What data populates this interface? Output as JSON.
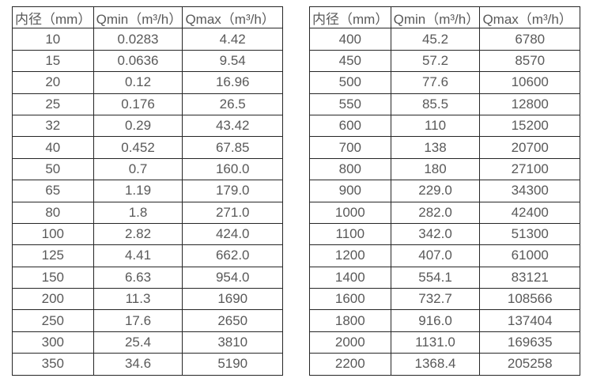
{
  "colors": {
    "background": "#ffffff",
    "border": "#262626",
    "text": "#595959"
  },
  "tables": [
    {
      "name": "flow-spec-table-small-diameters",
      "headers": [
        "内径（mm）",
        "Qmin（m³/h）",
        "Qmax（m³/h）"
      ],
      "rows": [
        [
          "10",
          "0.0283",
          "4.42"
        ],
        [
          "15",
          "0.0636",
          "9.54"
        ],
        [
          "20",
          "0.12",
          "16.96"
        ],
        [
          "25",
          "0.176",
          "26.5"
        ],
        [
          "32",
          "0.29",
          "43.42"
        ],
        [
          "40",
          "0.452",
          "67.85"
        ],
        [
          "50",
          "0.7",
          "160.0"
        ],
        [
          "65",
          "1.19",
          "179.0"
        ],
        [
          "80",
          "1.8",
          "271.0"
        ],
        [
          "100",
          "2.82",
          "424.0"
        ],
        [
          "125",
          "4.41",
          "662.0"
        ],
        [
          "150",
          "6.63",
          "954.0"
        ],
        [
          "200",
          "11.3",
          "1690"
        ],
        [
          "250",
          "17.6",
          "2650"
        ],
        [
          "300",
          "25.4",
          "3810"
        ],
        [
          "350",
          "34.6",
          "5190"
        ]
      ]
    },
    {
      "name": "flow-spec-table-large-diameters",
      "headers": [
        "内径（mm）",
        "Qmin（m³/h）",
        "Qmax（m³/h）"
      ],
      "rows": [
        [
          "400",
          "45.2",
          "6780"
        ],
        [
          "450",
          "57.2",
          "8570"
        ],
        [
          "500",
          "77.6",
          "10600"
        ],
        [
          "550",
          "85.5",
          "12800"
        ],
        [
          "600",
          "110",
          "15200"
        ],
        [
          "700",
          "138",
          "20700"
        ],
        [
          "800",
          "180",
          "27100"
        ],
        [
          "900",
          "229.0",
          "34300"
        ],
        [
          "1000",
          "282.0",
          "42400"
        ],
        [
          "1100",
          "342.0",
          "51300"
        ],
        [
          "1200",
          "407.0",
          "61000"
        ],
        [
          "1400",
          "554.1",
          "83121"
        ],
        [
          "1600",
          "732.7",
          "108566"
        ],
        [
          "1800",
          "916.0",
          "137404"
        ],
        [
          "2000",
          "1131.0",
          "169635"
        ],
        [
          "2200",
          "1368.4",
          "205258"
        ]
      ]
    }
  ]
}
